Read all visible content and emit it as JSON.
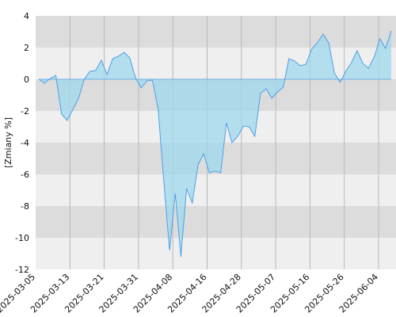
{
  "chart_data": {
    "type": "area",
    "ylabel": "[Zmiany %]",
    "xlabel": "",
    "title": "",
    "ylim": [
      -12,
      4
    ],
    "yticks": [
      4,
      2,
      0,
      -2,
      -4,
      -6,
      -8,
      -10,
      -12
    ],
    "x_tick_labels": [
      "2025-03-05",
      "2025-03-13",
      "2025-03-21",
      "2025-03-31",
      "2025-04-08",
      "2025-04-16",
      "2025-04-28",
      "2025-05-07",
      "2025-05-16",
      "2025-05-26",
      "2025-06-04"
    ],
    "grid": true,
    "colors": {
      "line": "#4f9fe6",
      "fill": "#9fd8ec",
      "band_dark": "#dcdcdc",
      "band_light": "#efefef"
    },
    "series": [
      {
        "values": [
          0.0,
          -0.25,
          0.05,
          0.25,
          -2.2,
          -2.6,
          -1.9,
          -1.2,
          0.0,
          0.5,
          0.55,
          1.2,
          0.3,
          1.3,
          1.45,
          1.7,
          1.35,
          0.1,
          -0.55,
          -0.1,
          -0.05,
          -1.9,
          -6.5,
          -10.8,
          -7.2,
          -11.2,
          -6.9,
          -7.8,
          -5.4,
          -4.7,
          -5.9,
          -5.8,
          -5.9,
          -2.75,
          -4.0,
          -3.6,
          -2.95,
          -3.0,
          -3.6,
          -0.9,
          -0.6,
          -1.2,
          -0.8,
          -0.5,
          1.3,
          1.15,
          0.85,
          0.95,
          1.9,
          2.3,
          2.85,
          2.3,
          0.4,
          -0.2,
          0.5,
          1.05,
          1.8,
          1.0,
          0.7,
          1.4,
          2.55,
          1.95,
          3.05
        ]
      }
    ]
  }
}
